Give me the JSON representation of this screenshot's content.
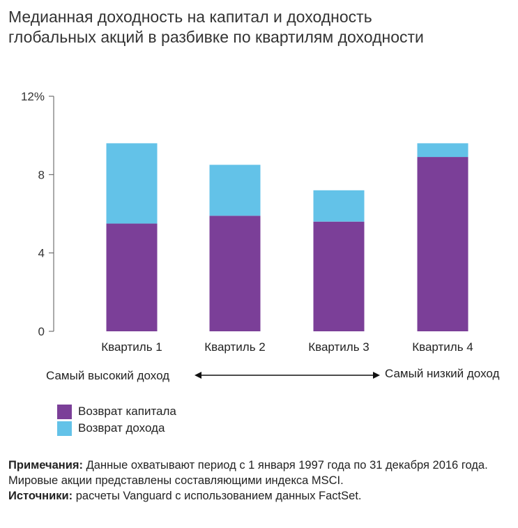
{
  "title": {
    "line1": "Медианная доходность на капитал и доходность",
    "line2": "глобальных акций в разбивке по квартилям доходности"
  },
  "chart_data": {
    "type": "bar",
    "stacked": true,
    "categories": [
      "Квартиль 1",
      "Квартиль 2",
      "Квартиль 3",
      "Квартиль 4"
    ],
    "series": [
      {
        "name": "Возврат капитала",
        "color": "#7b3f98",
        "values": [
          5.5,
          5.9,
          5.6,
          8.9
        ]
      },
      {
        "name": "Возврат дохода",
        "color": "#63c2e8",
        "values": [
          4.1,
          2.6,
          1.6,
          0.7
        ]
      }
    ],
    "ylim": [
      0,
      12
    ],
    "yticks": [
      {
        "value": 0,
        "label": "0"
      },
      {
        "value": 4,
        "label": "4"
      },
      {
        "value": 8,
        "label": "8"
      },
      {
        "value": 12,
        "label": "12%"
      }
    ],
    "grid": false,
    "legend_position": "bottom-left"
  },
  "range": {
    "left_label": "Самый высокий доход",
    "right_label": "Самый низкий доход"
  },
  "notes": {
    "notes_label": "Примечания:",
    "notes_text": " Данные охватывают период с 1 января 1997 года по 31 декабря 2016 года. Мировые акции представлены составляющими индекса MSCI.",
    "sources_label": "Источники:",
    "sources_text": " расчеты Vanguard с использованием данных FactSet."
  }
}
